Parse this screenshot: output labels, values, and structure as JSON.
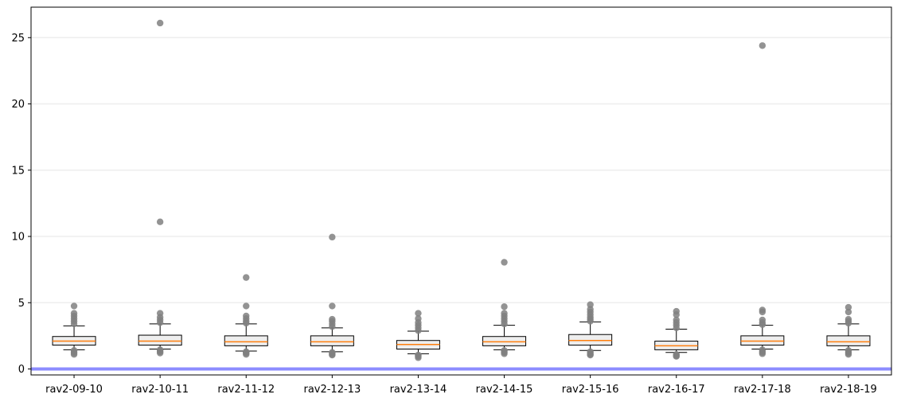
{
  "chart_data": {
    "type": "box",
    "title": "",
    "xlabel": "",
    "ylabel": "",
    "ylim": [
      -0.45,
      27.3
    ],
    "yticks": [
      0,
      5,
      10,
      15,
      20,
      25
    ],
    "ytick_labels": [
      "0",
      "5",
      "10",
      "15",
      "20",
      "25"
    ],
    "grid": {
      "horizontal": true,
      "color": "#eeeeee"
    },
    "reference_line": {
      "y": 0,
      "color": "#8c8cff"
    },
    "colors": {
      "box_edge": "#000000",
      "box_fill": "#eeeeee",
      "median": "#ff7f0e",
      "outlier": "#808080"
    },
    "categories": [
      "rav2-09-10",
      "rav2-10-11",
      "rav2-11-12",
      "rav2-12-13",
      "rav2-13-14",
      "rav2-14-15",
      "rav2-15-16",
      "rav2-16-17",
      "rav2-17-18",
      "rav2-18-19"
    ],
    "boxes": [
      {
        "category": "rav2-09-10",
        "whisker_low": 1.45,
        "q1": 1.8,
        "median": 2.1,
        "q3": 2.45,
        "whisker_high": 3.25,
        "outliers": [
          1.1,
          1.2,
          1.3,
          1.4,
          3.4,
          3.6,
          3.8,
          4.0,
          4.2,
          4.75
        ]
      },
      {
        "category": "rav2-10-11",
        "whisker_low": 1.5,
        "q1": 1.8,
        "median": 2.1,
        "q3": 2.55,
        "whisker_high": 3.4,
        "outliers": [
          1.2,
          1.3,
          1.4,
          1.45,
          3.5,
          3.7,
          3.9,
          4.2,
          11.1,
          26.1
        ]
      },
      {
        "category": "rav2-11-12",
        "whisker_low": 1.35,
        "q1": 1.75,
        "median": 2.05,
        "q3": 2.5,
        "whisker_high": 3.4,
        "outliers": [
          1.1,
          1.2,
          1.25,
          1.3,
          3.45,
          3.6,
          3.8,
          4.0,
          4.75,
          6.9
        ]
      },
      {
        "category": "rav2-12-13",
        "whisker_low": 1.3,
        "q1": 1.75,
        "median": 2.05,
        "q3": 2.5,
        "whisker_high": 3.1,
        "outliers": [
          1.05,
          1.1,
          1.2,
          1.25,
          3.2,
          3.4,
          3.6,
          3.75,
          4.75,
          9.95
        ]
      },
      {
        "category": "rav2-13-14",
        "whisker_low": 1.15,
        "q1": 1.5,
        "median": 1.85,
        "q3": 2.15,
        "whisker_high": 2.85,
        "outliers": [
          0.85,
          0.95,
          1.0,
          1.05,
          2.9,
          3.1,
          3.3,
          3.5,
          3.8,
          4.2
        ]
      },
      {
        "category": "rav2-14-15",
        "whisker_low": 1.45,
        "q1": 1.75,
        "median": 2.05,
        "q3": 2.45,
        "whisker_high": 3.3,
        "outliers": [
          1.15,
          1.25,
          1.3,
          1.4,
          3.4,
          3.6,
          3.8,
          4.0,
          4.2,
          4.7,
          8.05
        ]
      },
      {
        "category": "rav2-15-16",
        "whisker_low": 1.4,
        "q1": 1.8,
        "median": 2.15,
        "q3": 2.6,
        "whisker_high": 3.55,
        "outliers": [
          1.05,
          1.1,
          1.2,
          1.3,
          3.6,
          3.75,
          3.9,
          4.1,
          4.3,
          4.5,
          4.85
        ]
      },
      {
        "category": "rav2-16-17",
        "whisker_low": 1.25,
        "q1": 1.45,
        "median": 1.75,
        "q3": 2.1,
        "whisker_high": 3.0,
        "outliers": [
          0.95,
          1.0,
          1.05,
          1.1,
          3.1,
          3.3,
          3.5,
          3.7,
          4.1,
          4.35
        ]
      },
      {
        "category": "rav2-17-18",
        "whisker_low": 1.5,
        "q1": 1.8,
        "median": 2.1,
        "q3": 2.5,
        "whisker_high": 3.3,
        "outliers": [
          1.15,
          1.25,
          1.35,
          1.45,
          3.35,
          3.5,
          3.7,
          4.3,
          4.45,
          24.4
        ]
      },
      {
        "category": "rav2-18-19",
        "whisker_low": 1.45,
        "q1": 1.75,
        "median": 2.05,
        "q3": 2.5,
        "whisker_high": 3.4,
        "outliers": [
          1.1,
          1.2,
          1.3,
          1.4,
          3.45,
          3.6,
          3.75,
          4.3,
          4.65
        ]
      }
    ]
  }
}
